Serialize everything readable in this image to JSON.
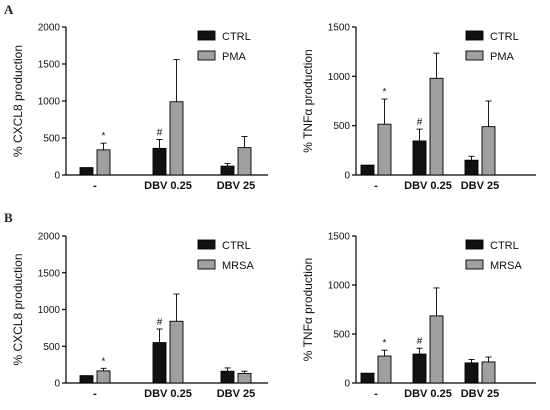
{
  "panel_labels": [
    "A",
    "B"
  ],
  "colors": {
    "ctrl": "#111111",
    "treatment": "#a0a0a0",
    "axis": "#000000",
    "text": "#111111"
  },
  "chart_data": [
    {
      "type": "bar",
      "panel": "A",
      "ylabel": "% CXCL8 production",
      "ylim": [
        0,
        2000
      ],
      "yticks": [
        0,
        500,
        1000,
        1500,
        2000
      ],
      "categories": [
        "-",
        "DBV 0.25",
        "DBV 25"
      ],
      "series": [
        {
          "name": "CTRL",
          "values": [
            100,
            360,
            120
          ],
          "errors": [
            0,
            120,
            35
          ]
        },
        {
          "name": "PMA",
          "values": [
            340,
            990,
            370
          ],
          "errors": [
            90,
            570,
            150
          ]
        }
      ],
      "annotations": [
        {
          "category": 0,
          "series": 1,
          "text": "*"
        },
        {
          "category": 1,
          "series": 0,
          "text": "#"
        }
      ],
      "legend": "top-right"
    },
    {
      "type": "bar",
      "panel": "A",
      "ylabel": "% TNFα production",
      "ylim": [
        0,
        1500
      ],
      "yticks": [
        0,
        500,
        1000,
        1500
      ],
      "categories": [
        "-",
        "DBV 0.25",
        "DBV 25"
      ],
      "series": [
        {
          "name": "CTRL",
          "values": [
            100,
            345,
            150
          ],
          "errors": [
            0,
            120,
            40
          ]
        },
        {
          "name": "PMA",
          "values": [
            515,
            980,
            490
          ],
          "errors": [
            255,
            255,
            260
          ]
        }
      ],
      "annotations": [
        {
          "category": 0,
          "series": 1,
          "text": "*"
        },
        {
          "category": 1,
          "series": 0,
          "text": "#"
        }
      ],
      "legend": "top-right"
    },
    {
      "type": "bar",
      "panel": "B",
      "ylabel": "% CXCL8 production",
      "ylim": [
        0,
        2000
      ],
      "yticks": [
        0,
        500,
        1000,
        1500,
        2000
      ],
      "categories": [
        "-",
        "DBV 0.25",
        "DBV 25"
      ],
      "series": [
        {
          "name": "CTRL",
          "values": [
            100,
            550,
            160
          ],
          "errors": [
            0,
            185,
            45
          ]
        },
        {
          "name": "MRSA",
          "values": [
            165,
            840,
            130
          ],
          "errors": [
            35,
            370,
            30
          ]
        }
      ],
      "annotations": [
        {
          "category": 0,
          "series": 1,
          "text": "*"
        },
        {
          "category": 1,
          "series": 0,
          "text": "#"
        }
      ],
      "legend": "top-right"
    },
    {
      "type": "bar",
      "panel": "B",
      "ylabel": "% TNFα production",
      "ylim": [
        0,
        1500
      ],
      "yticks": [
        0,
        500,
        1000,
        1500
      ],
      "categories": [
        "-",
        "DBV 0.25",
        "DBV 25"
      ],
      "series": [
        {
          "name": "CTRL",
          "values": [
            100,
            295,
            205
          ],
          "errors": [
            0,
            60,
            35
          ]
        },
        {
          "name": "MRSA",
          "values": [
            275,
            685,
            215
          ],
          "errors": [
            60,
            285,
            50
          ]
        }
      ],
      "annotations": [
        {
          "category": 0,
          "series": 1,
          "text": "*"
        },
        {
          "category": 1,
          "series": 0,
          "text": "#"
        }
      ],
      "legend": "top-right"
    }
  ]
}
